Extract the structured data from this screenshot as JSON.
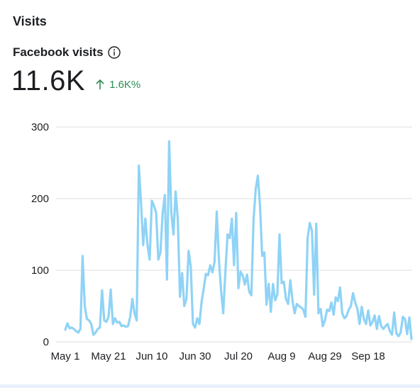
{
  "section": {
    "title": "Visits"
  },
  "metric": {
    "label": "Facebook visits",
    "info_icon": "info-icon",
    "value": "11.6K",
    "change": "1.6K%",
    "change_icon": "arrow-up-icon",
    "change_color": "#2e8b57"
  },
  "chart_data": {
    "type": "line",
    "title": "",
    "xlabel": "",
    "ylabel": "",
    "ylim": [
      0,
      300
    ],
    "yticks": [
      0,
      100,
      200,
      300
    ],
    "xticks": [
      "May 1",
      "May 21",
      "Jun 10",
      "Jun 30",
      "Jul 20",
      "Aug 9",
      "Aug 29",
      "Sep 18"
    ],
    "grid": true,
    "line_color": "#8fd3f6",
    "series": [
      {
        "name": "",
        "values": [
          17,
          26,
          19,
          20,
          18,
          15,
          13,
          18,
          120,
          50,
          32,
          30,
          25,
          10,
          13,
          18,
          20,
          72,
          30,
          28,
          35,
          73,
          25,
          33,
          27,
          28,
          22,
          23,
          21,
          22,
          35,
          60,
          40,
          30,
          246,
          195,
          135,
          172,
          135,
          115,
          197,
          190,
          180,
          115,
          125,
          180,
          205,
          87,
          280,
          180,
          150,
          210,
          172,
          63,
          96,
          50,
          60,
          127,
          105,
          25,
          20,
          33,
          25,
          56,
          75,
          95,
          93,
          107,
          97,
          112,
          182,
          115,
          72,
          40,
          98,
          150,
          145,
          172,
          107,
          180,
          75,
          98,
          93,
          80,
          94,
          70,
          65,
          170,
          213,
          232,
          190,
          120,
          125,
          52,
          81,
          42,
          81,
          58,
          66,
          150,
          82,
          84,
          60,
          53,
          86,
          58,
          40,
          53,
          50,
          48,
          45,
          35,
          145,
          166,
          155,
          66,
          165,
          40,
          46,
          22,
          30,
          45,
          43,
          55,
          38,
          62,
          57,
          76,
          40,
          33,
          36,
          45,
          50,
          68,
          55,
          46,
          25,
          49,
          32,
          25,
          44,
          23,
          28,
          37,
          18,
          36,
          22,
          18,
          22,
          25,
          15,
          10,
          41,
          12,
          8,
          13,
          35,
          32,
          11,
          34,
          4
        ]
      }
    ]
  }
}
